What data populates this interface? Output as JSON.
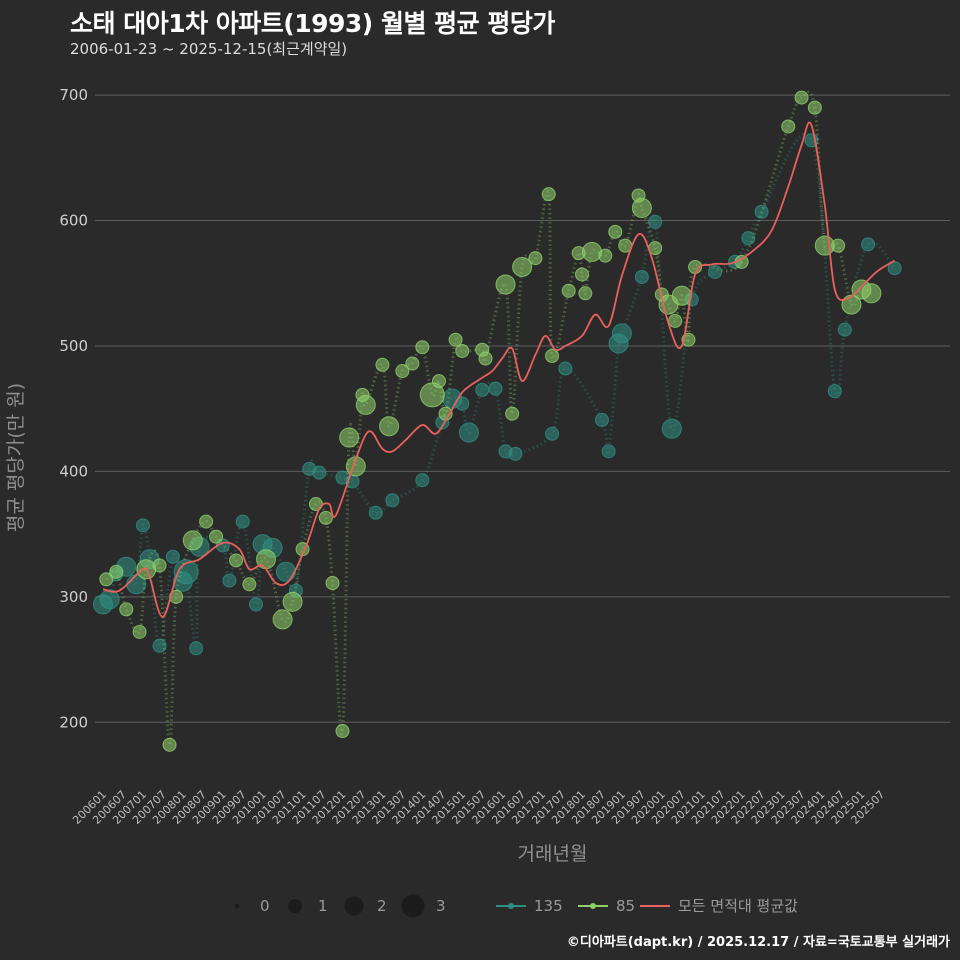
{
  "title": "소태 대아1차 아파트(1993) 월별 평균 평당가",
  "subtitle": "2006-01-23 ~ 2025-12-15(최근계약일)",
  "footer": "©디아파트(dapt.kr) / 2025.12.17 / 자료=국토교통부 실거래가",
  "colors": {
    "background": "#2a2a2b",
    "grid": "#5e5e5e",
    "s135": "#2f8f83",
    "s85": "#8fd16a",
    "avg": "#e8615d"
  },
  "chart_data": {
    "type": "scatter",
    "title": "소태 대아1차 아파트(1993) 월별 평균 평당가",
    "xlabel": "거래년월",
    "ylabel": "평균 평당가(만 원)",
    "ylim": [
      150,
      720
    ],
    "yticks": [
      200,
      300,
      400,
      500,
      600,
      700
    ],
    "xlim": [
      "2006-01",
      "2025-12"
    ],
    "xticks": [
      "200601",
      "200607",
      "200701",
      "200707",
      "200801",
      "200807",
      "200901",
      "200907",
      "201001",
      "201007",
      "201101",
      "201107",
      "201201",
      "201207",
      "201301",
      "201307",
      "201401",
      "201407",
      "201501",
      "201507",
      "201601",
      "201607",
      "201701",
      "201707",
      "201801",
      "201807",
      "201901",
      "201907",
      "202001",
      "202007",
      "202101",
      "202107",
      "202201",
      "202207",
      "202301",
      "202307",
      "202401",
      "202407",
      "202501",
      "202507"
    ],
    "size_legend": {
      "values": [
        "0",
        "1",
        "2",
        "3"
      ]
    },
    "series": [
      {
        "name": "135",
        "points": [
          [
            "2006-01",
            294,
            2
          ],
          [
            "2006-03",
            298,
            2
          ],
          [
            "2006-05",
            318,
            1
          ],
          [
            "2006-08",
            324,
            2
          ],
          [
            "2006-11",
            310,
            2
          ],
          [
            "2007-01",
            357,
            1
          ],
          [
            "2007-03",
            330,
            2
          ],
          [
            "2007-06",
            261,
            1
          ],
          [
            "2007-10",
            332,
            1
          ],
          [
            "2008-01",
            312,
            2
          ],
          [
            "2008-02",
            320,
            3
          ],
          [
            "2008-05",
            259,
            1
          ],
          [
            "2008-06",
            340,
            2
          ],
          [
            "2009-01",
            341,
            1
          ],
          [
            "2009-03",
            313,
            1
          ],
          [
            "2009-07",
            360,
            1
          ],
          [
            "2009-11",
            294,
            1
          ],
          [
            "2010-01",
            342,
            2
          ],
          [
            "2010-04",
            339,
            2
          ],
          [
            "2010-08",
            320,
            2
          ],
          [
            "2010-11",
            305,
            1
          ],
          [
            "2011-03",
            402,
            1
          ],
          [
            "2011-06",
            399,
            1
          ],
          [
            "2012-01",
            395,
            1
          ],
          [
            "2012-04",
            392,
            1
          ],
          [
            "2012-11",
            367,
            1
          ],
          [
            "2013-04",
            377,
            1
          ],
          [
            "2014-01",
            393,
            1
          ],
          [
            "2014-07",
            439,
            1
          ],
          [
            "2014-10",
            458,
            2
          ],
          [
            "2015-01",
            454,
            1
          ],
          [
            "2015-03",
            431,
            2
          ],
          [
            "2015-07",
            465,
            1
          ],
          [
            "2015-11",
            466,
            1
          ],
          [
            "2016-02",
            416,
            1
          ],
          [
            "2016-05",
            414,
            1
          ],
          [
            "2017-08",
            482,
            1
          ],
          [
            "2017-04",
            430,
            1
          ],
          [
            "2018-07",
            441,
            1
          ],
          [
            "2018-09",
            416,
            1
          ],
          [
            "2018-12",
            502,
            2
          ],
          [
            "2019-01",
            510,
            2
          ],
          [
            "2019-07",
            555,
            1
          ],
          [
            "2019-11",
            599,
            1
          ],
          [
            "2020-04",
            434,
            2
          ],
          [
            "2020-10",
            537,
            1
          ],
          [
            "2021-05",
            559,
            1
          ],
          [
            "2021-11",
            567,
            1
          ],
          [
            "2022-03",
            586,
            1
          ],
          [
            "2022-07",
            607,
            1
          ],
          [
            "2023-10",
            664,
            1
          ],
          [
            "2024-05",
            464,
            1
          ],
          [
            "2024-08",
            513,
            1
          ],
          [
            "2025-03",
            581,
            1
          ],
          [
            "2025-11",
            562,
            1
          ]
        ]
      },
      {
        "name": "85",
        "points": [
          [
            "2006-02",
            314,
            1
          ],
          [
            "2006-05",
            320,
            1
          ],
          [
            "2006-08",
            290,
            1
          ],
          [
            "2006-12",
            272,
            1
          ],
          [
            "2007-02",
            322,
            2
          ],
          [
            "2007-06",
            325,
            1
          ],
          [
            "2007-09",
            182,
            1
          ],
          [
            "2007-11",
            300,
            1
          ],
          [
            "2008-04",
            345,
            2
          ],
          [
            "2008-08",
            360,
            1
          ],
          [
            "2008-11",
            348,
            1
          ],
          [
            "2009-05",
            329,
            1
          ],
          [
            "2009-09",
            310,
            1
          ],
          [
            "2010-02",
            330,
            2
          ],
          [
            "2010-07",
            282,
            2
          ],
          [
            "2010-10",
            296,
            2
          ],
          [
            "2011-01",
            338,
            1
          ],
          [
            "2011-05",
            374,
            1
          ],
          [
            "2011-08",
            363,
            1
          ],
          [
            "2011-10",
            311,
            1
          ],
          [
            "2012-01",
            193,
            1
          ],
          [
            "2012-03",
            427,
            2
          ],
          [
            "2012-05",
            404,
            2
          ],
          [
            "2012-07",
            461,
            1
          ],
          [
            "2012-08",
            453,
            2
          ],
          [
            "2013-01",
            485,
            1
          ],
          [
            "2013-03",
            436,
            2
          ],
          [
            "2013-07",
            480,
            1
          ],
          [
            "2013-10",
            486,
            1
          ],
          [
            "2014-01",
            499,
            1
          ],
          [
            "2014-04",
            461,
            3
          ],
          [
            "2014-06",
            472,
            1
          ],
          [
            "2014-08",
            446,
            1
          ],
          [
            "2014-11",
            505,
            1
          ],
          [
            "2015-01",
            496,
            1
          ],
          [
            "2015-07",
            497,
            1
          ],
          [
            "2015-08",
            490,
            1
          ],
          [
            "2016-02",
            549,
            2
          ],
          [
            "2016-04",
            446,
            1
          ],
          [
            "2016-07",
            563,
            2
          ],
          [
            "2016-11",
            570,
            1
          ],
          [
            "2017-03",
            621,
            1
          ],
          [
            "2017-04",
            492,
            1
          ],
          [
            "2017-09",
            544,
            1
          ],
          [
            "2017-12",
            574,
            1
          ],
          [
            "2018-01",
            557,
            1
          ],
          [
            "2018-02",
            542,
            1
          ],
          [
            "2018-04",
            575,
            2
          ],
          [
            "2018-08",
            572,
            1
          ],
          [
            "2018-11",
            591,
            1
          ],
          [
            "2019-02",
            580,
            1
          ],
          [
            "2019-06",
            620,
            1
          ],
          [
            "2019-07",
            610,
            2
          ],
          [
            "2019-11",
            578,
            1
          ],
          [
            "2020-01",
            541,
            1
          ],
          [
            "2020-03",
            533,
            2
          ],
          [
            "2020-05",
            520,
            1
          ],
          [
            "2020-07",
            540,
            2
          ],
          [
            "2020-09",
            505,
            1
          ],
          [
            "2020-11",
            563,
            1
          ],
          [
            "2022-01",
            567,
            1
          ],
          [
            "2023-03",
            675,
            1
          ],
          [
            "2023-07",
            698,
            1
          ],
          [
            "2023-11",
            690,
            1
          ],
          [
            "2024-02",
            580,
            2
          ],
          [
            "2024-06",
            580,
            1
          ],
          [
            "2024-10",
            533,
            2
          ],
          [
            "2025-01",
            545,
            2
          ],
          [
            "2025-04",
            542,
            2
          ]
        ]
      },
      {
        "name": "모든 면적대 평균값",
        "points": [
          [
            "2006-01",
            306
          ],
          [
            "2006-06",
            305
          ],
          [
            "2007-01",
            322
          ],
          [
            "2007-03",
            316
          ],
          [
            "2007-07",
            284
          ],
          [
            "2007-12",
            322
          ],
          [
            "2008-06",
            330
          ],
          [
            "2009-01",
            343
          ],
          [
            "2009-06",
            338
          ],
          [
            "2009-09",
            322
          ],
          [
            "2010-01",
            325
          ],
          [
            "2010-05",
            311
          ],
          [
            "2010-09",
            313
          ],
          [
            "2011-02",
            340
          ],
          [
            "2011-06",
            370
          ],
          [
            "2011-09",
            374
          ],
          [
            "2011-11",
            365
          ],
          [
            "2012-05",
            410
          ],
          [
            "2012-09",
            432
          ],
          [
            "2013-01",
            418
          ],
          [
            "2013-04",
            416
          ],
          [
            "2013-08",
            425
          ],
          [
            "2014-01",
            437
          ],
          [
            "2014-05",
            430
          ],
          [
            "2014-09",
            445
          ],
          [
            "2015-01",
            463
          ],
          [
            "2015-06",
            473
          ],
          [
            "2015-10",
            480
          ],
          [
            "2016-01",
            490
          ],
          [
            "2016-04",
            498
          ],
          [
            "2016-07",
            472
          ],
          [
            "2016-11",
            493
          ],
          [
            "2017-02",
            508
          ],
          [
            "2017-05",
            497
          ],
          [
            "2017-08",
            500
          ],
          [
            "2018-01",
            508
          ],
          [
            "2018-05",
            525
          ],
          [
            "2018-09",
            516
          ],
          [
            "2019-01",
            556
          ],
          [
            "2019-06",
            589
          ],
          [
            "2019-10",
            570
          ],
          [
            "2020-03",
            518
          ],
          [
            "2020-07",
            500
          ],
          [
            "2020-11",
            557
          ],
          [
            "2021-04",
            565
          ],
          [
            "2021-10",
            566
          ],
          [
            "2022-04",
            575
          ],
          [
            "2022-10",
            592
          ],
          [
            "2023-03",
            627
          ],
          [
            "2023-07",
            660
          ],
          [
            "2023-10",
            676
          ],
          [
            "2024-02",
            612
          ],
          [
            "2024-05",
            545
          ],
          [
            "2024-09",
            538
          ],
          [
            "2025-02",
            550
          ],
          [
            "2025-06",
            560
          ],
          [
            "2025-11",
            568
          ]
        ]
      }
    ],
    "legend": {
      "position": "bottom",
      "sizes_title": "",
      "lines": [
        "135",
        "85",
        "모든 면적대 평균값"
      ]
    }
  }
}
